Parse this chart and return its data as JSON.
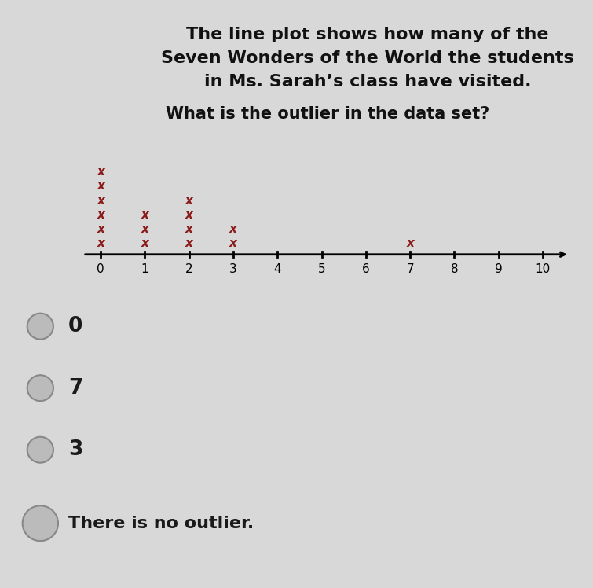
{
  "title_line1": "The line plot shows how many of the",
  "title_line2": "Seven Wonders of the World the students",
  "title_line3": "in Ms. Sarah’s class have visited.",
  "question": "What is the outlier in the data set?",
  "data_points": {
    "0": 6,
    "1": 3,
    "2": 4,
    "3": 2,
    "7": 1
  },
  "x_min": 0,
  "x_max": 10,
  "x_ticks": [
    0,
    1,
    2,
    3,
    4,
    5,
    6,
    7,
    8,
    9,
    10
  ],
  "marker_color": "#8B1A1A",
  "marker_size": 11,
  "bg_color": "#d8d8d8",
  "choices": [
    "0",
    "7",
    "3",
    "There is no outlier."
  ],
  "title_fontsize": 16,
  "question_fontsize": 15
}
